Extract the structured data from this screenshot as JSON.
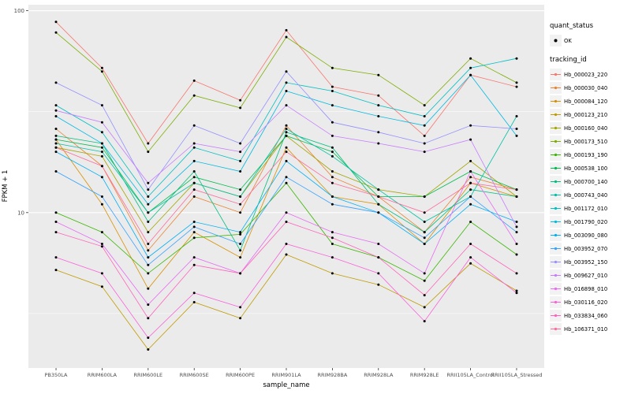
{
  "chart_data": {
    "type": "line",
    "title": "",
    "xlabel": "sample_name",
    "ylabel": "FPKM + 1",
    "y_scale": "log10",
    "ylim": [
      1.7,
      107
    ],
    "y_ticks": [
      10,
      100
    ],
    "y_minor_ticks": [
      3.162,
      31.62
    ],
    "grid": true,
    "panel_color": "#EBEBEB",
    "grid_color": "#FFFFFF",
    "point_color": "#000000",
    "categories": [
      "PB350LA",
      "RRIM600LA",
      "RRIM600LE",
      "RRIM600SE",
      "RRIM600PE",
      "RRIM901LA",
      "RRIM928BA",
      "RRIM928LA",
      "RRIM928LE",
      "RRII105LA_Control",
      "RRII105LA_Stressed"
    ],
    "legend": {
      "quant_status_title": "quant_status",
      "quant_status_items": [
        "OK"
      ],
      "tracking_id_title": "tracking_id",
      "position": "right"
    },
    "series": [
      {
        "name": "Hb_000023_220",
        "color": "#F8766D",
        "values": [
          88,
          52,
          22,
          45,
          36,
          80,
          42,
          38,
          24,
          48,
          42
        ]
      },
      {
        "name": "Hb_000030_040",
        "color": "#EA8331",
        "values": [
          26,
          17,
          6.5,
          12,
          10,
          27,
          15,
          12,
          8,
          15,
          13
        ]
      },
      {
        "name": "Hb_000084_120",
        "color": "#D89000",
        "values": [
          23,
          11,
          4.2,
          8,
          6,
          21,
          12,
          11,
          7,
          14,
          12
        ]
      },
      {
        "name": "Hb_000123_210",
        "color": "#C09B00",
        "values": [
          5.2,
          4.3,
          2.1,
          3.6,
          3.0,
          6.2,
          5.0,
          4.4,
          3.4,
          5.6,
          4.1
        ]
      },
      {
        "name": "Hb_000160_040",
        "color": "#A3A500",
        "values": [
          21,
          19,
          8,
          14,
          12,
          24,
          16,
          13,
          12,
          18,
          12
        ]
      },
      {
        "name": "Hb_000173_510",
        "color": "#7CAE00",
        "values": [
          78,
          50,
          20,
          38,
          33,
          74,
          52,
          48,
          34,
          58,
          44
        ]
      },
      {
        "name": "Hb_000193_190",
        "color": "#39B600",
        "values": [
          10,
          8,
          5,
          7.5,
          7.8,
          14,
          7,
          6,
          4.6,
          9,
          6.2
        ]
      },
      {
        "name": "Hb_000538_100",
        "color": "#00BB4E",
        "values": [
          23,
          21,
          10,
          15,
          13,
          24,
          20,
          12,
          12,
          16,
          13
        ]
      },
      {
        "name": "Hb_000700_140",
        "color": "#00BF7D",
        "values": [
          24,
          22,
          9,
          16,
          6.5,
          25,
          21,
          11,
          8,
          13,
          12
        ]
      },
      {
        "name": "Hb_000743_040",
        "color": "#00C1A3",
        "values": [
          22,
          20,
          10,
          14,
          12,
          26,
          19,
          13,
          9,
          12,
          30
        ]
      },
      {
        "name": "Hb_001172_010",
        "color": "#00BFC4",
        "values": [
          34,
          25,
          12,
          21,
          18,
          44,
          40,
          34,
          30,
          52,
          58
        ]
      },
      {
        "name": "Hb_001790_020",
        "color": "#00BAE0",
        "values": [
          30,
          22,
          11,
          18,
          16,
          40,
          34,
          30,
          27,
          48,
          24
        ]
      },
      {
        "name": "Hb_003090_080",
        "color": "#00B0F6",
        "values": [
          20,
          15,
          6,
          9,
          8,
          18,
          12,
          10,
          7,
          11,
          9
        ]
      },
      {
        "name": "Hb_003952_070",
        "color": "#35A2FF",
        "values": [
          16,
          12,
          5.5,
          8.5,
          7,
          15,
          11,
          10,
          7.5,
          12,
          8
        ]
      },
      {
        "name": "Hb_003952_150",
        "color": "#9590FF",
        "values": [
          44,
          34,
          13,
          27,
          22,
          50,
          28,
          25,
          22,
          27,
          26
        ]
      },
      {
        "name": "Hb_009627_010",
        "color": "#C77CFF",
        "values": [
          32,
          28,
          14,
          22,
          20,
          34,
          24,
          22,
          20,
          23,
          8.5
        ]
      },
      {
        "name": "Hb_016898_010",
        "color": "#E76BF3",
        "values": [
          9,
          7,
          3.5,
          6,
          5,
          10,
          8,
          7,
          5,
          16,
          7
        ]
      },
      {
        "name": "Hb_030116_020",
        "color": "#FA62DB",
        "values": [
          6,
          5,
          2.4,
          4,
          3.4,
          7,
          6,
          5,
          2.9,
          6,
          4
        ]
      },
      {
        "name": "Hb_033834_060",
        "color": "#FF62BC",
        "values": [
          8,
          6.8,
          3.0,
          5.5,
          5,
          9,
          7.5,
          6,
          3.9,
          7,
          5
        ]
      },
      {
        "name": "Hb_106371_010",
        "color": "#FF6A98",
        "values": [
          21,
          17,
          7,
          13,
          11,
          20,
          14,
          12,
          10,
          14,
          13
        ]
      }
    ]
  }
}
